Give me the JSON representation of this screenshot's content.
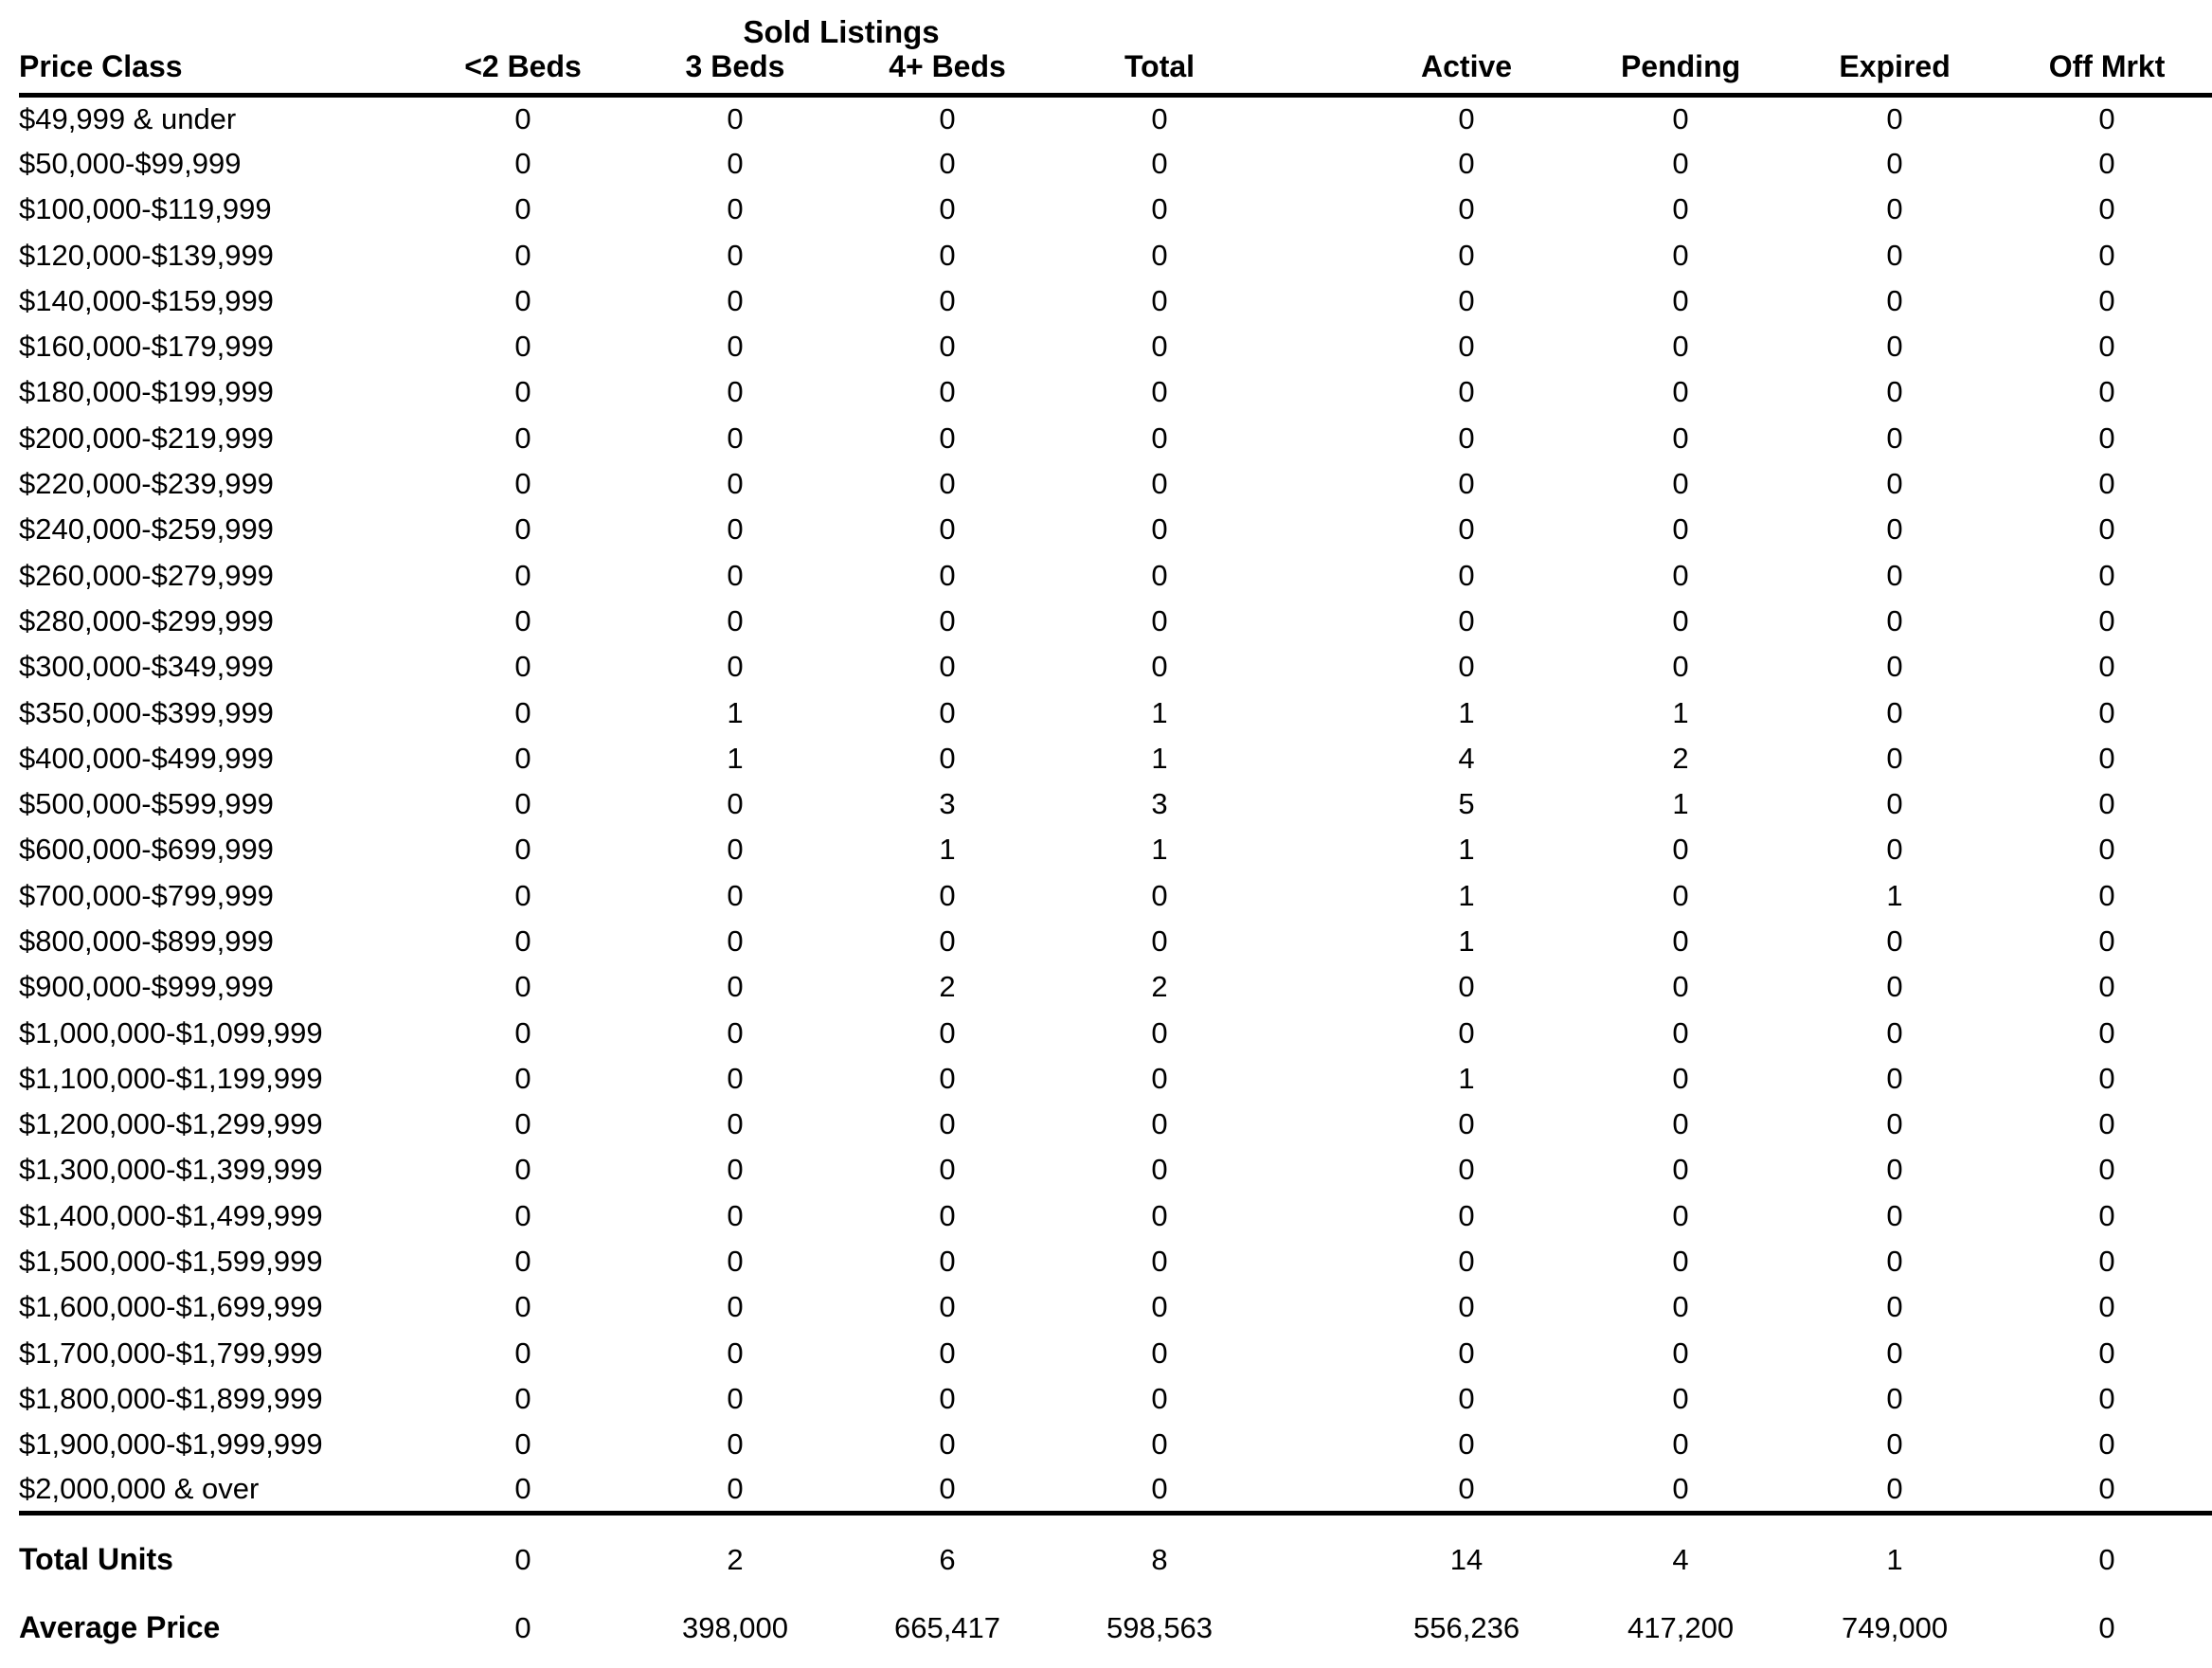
{
  "title": "Sold Listings",
  "colors": {
    "text": "#000000",
    "background": "#ffffff",
    "rule": "#000000"
  },
  "chart_data": {
    "type": "table",
    "title": "Sold Listings",
    "title_spans_columns": [
      "<2 Beds",
      "3 Beds",
      "4+ Beds",
      "Total"
    ],
    "columns": [
      "Price Class",
      "<2 Beds",
      "3 Beds",
      "4+ Beds",
      "Total",
      "Active",
      "Pending",
      "Expired",
      "Off Mrkt"
    ],
    "rows": [
      {
        "price_class": "$49,999 & under",
        "values": [
          "0",
          "0",
          "0",
          "0",
          "0",
          "0",
          "0",
          "0"
        ]
      },
      {
        "price_class": "$50,000-$99,999",
        "values": [
          "0",
          "0",
          "0",
          "0",
          "0",
          "0",
          "0",
          "0"
        ]
      },
      {
        "price_class": "$100,000-$119,999",
        "values": [
          "0",
          "0",
          "0",
          "0",
          "0",
          "0",
          "0",
          "0"
        ]
      },
      {
        "price_class": "$120,000-$139,999",
        "values": [
          "0",
          "0",
          "0",
          "0",
          "0",
          "0",
          "0",
          "0"
        ]
      },
      {
        "price_class": "$140,000-$159,999",
        "values": [
          "0",
          "0",
          "0",
          "0",
          "0",
          "0",
          "0",
          "0"
        ]
      },
      {
        "price_class": "$160,000-$179,999",
        "values": [
          "0",
          "0",
          "0",
          "0",
          "0",
          "0",
          "0",
          "0"
        ]
      },
      {
        "price_class": "$180,000-$199,999",
        "values": [
          "0",
          "0",
          "0",
          "0",
          "0",
          "0",
          "0",
          "0"
        ]
      },
      {
        "price_class": "$200,000-$219,999",
        "values": [
          "0",
          "0",
          "0",
          "0",
          "0",
          "0",
          "0",
          "0"
        ]
      },
      {
        "price_class": "$220,000-$239,999",
        "values": [
          "0",
          "0",
          "0",
          "0",
          "0",
          "0",
          "0",
          "0"
        ]
      },
      {
        "price_class": "$240,000-$259,999",
        "values": [
          "0",
          "0",
          "0",
          "0",
          "0",
          "0",
          "0",
          "0"
        ]
      },
      {
        "price_class": "$260,000-$279,999",
        "values": [
          "0",
          "0",
          "0",
          "0",
          "0",
          "0",
          "0",
          "0"
        ]
      },
      {
        "price_class": "$280,000-$299,999",
        "values": [
          "0",
          "0",
          "0",
          "0",
          "0",
          "0",
          "0",
          "0"
        ]
      },
      {
        "price_class": "$300,000-$349,999",
        "values": [
          "0",
          "0",
          "0",
          "0",
          "0",
          "0",
          "0",
          "0"
        ]
      },
      {
        "price_class": "$350,000-$399,999",
        "values": [
          "0",
          "1",
          "0",
          "1",
          "1",
          "1",
          "0",
          "0"
        ]
      },
      {
        "price_class": "$400,000-$499,999",
        "values": [
          "0",
          "1",
          "0",
          "1",
          "4",
          "2",
          "0",
          "0"
        ]
      },
      {
        "price_class": "$500,000-$599,999",
        "values": [
          "0",
          "0",
          "3",
          "3",
          "5",
          "1",
          "0",
          "0"
        ]
      },
      {
        "price_class": "$600,000-$699,999",
        "values": [
          "0",
          "0",
          "1",
          "1",
          "1",
          "0",
          "0",
          "0"
        ]
      },
      {
        "price_class": "$700,000-$799,999",
        "values": [
          "0",
          "0",
          "0",
          "0",
          "1",
          "0",
          "1",
          "0"
        ]
      },
      {
        "price_class": "$800,000-$899,999",
        "values": [
          "0",
          "0",
          "0",
          "0",
          "1",
          "0",
          "0",
          "0"
        ]
      },
      {
        "price_class": "$900,000-$999,999",
        "values": [
          "0",
          "0",
          "2",
          "2",
          "0",
          "0",
          "0",
          "0"
        ]
      },
      {
        "price_class": "$1,000,000-$1,099,999",
        "values": [
          "0",
          "0",
          "0",
          "0",
          "0",
          "0",
          "0",
          "0"
        ]
      },
      {
        "price_class": "$1,100,000-$1,199,999",
        "values": [
          "0",
          "0",
          "0",
          "0",
          "1",
          "0",
          "0",
          "0"
        ]
      },
      {
        "price_class": "$1,200,000-$1,299,999",
        "values": [
          "0",
          "0",
          "0",
          "0",
          "0",
          "0",
          "0",
          "0"
        ]
      },
      {
        "price_class": "$1,300,000-$1,399,999",
        "values": [
          "0",
          "0",
          "0",
          "0",
          "0",
          "0",
          "0",
          "0"
        ]
      },
      {
        "price_class": "$1,400,000-$1,499,999",
        "values": [
          "0",
          "0",
          "0",
          "0",
          "0",
          "0",
          "0",
          "0"
        ]
      },
      {
        "price_class": "$1,500,000-$1,599,999",
        "values": [
          "0",
          "0",
          "0",
          "0",
          "0",
          "0",
          "0",
          "0"
        ]
      },
      {
        "price_class": "$1,600,000-$1,699,999",
        "values": [
          "0",
          "0",
          "0",
          "0",
          "0",
          "0",
          "0",
          "0"
        ]
      },
      {
        "price_class": "$1,700,000-$1,799,999",
        "values": [
          "0",
          "0",
          "0",
          "0",
          "0",
          "0",
          "0",
          "0"
        ]
      },
      {
        "price_class": "$1,800,000-$1,899,999",
        "values": [
          "0",
          "0",
          "0",
          "0",
          "0",
          "0",
          "0",
          "0"
        ]
      },
      {
        "price_class": "$1,900,000-$1,999,999",
        "values": [
          "0",
          "0",
          "0",
          "0",
          "0",
          "0",
          "0",
          "0"
        ]
      },
      {
        "price_class": "$2,000,000 & over",
        "values": [
          "0",
          "0",
          "0",
          "0",
          "0",
          "0",
          "0",
          "0"
        ]
      }
    ],
    "summary": [
      {
        "label": "Total Units",
        "values": [
          "0",
          "2",
          "6",
          "8",
          "14",
          "4",
          "1",
          "0"
        ]
      },
      {
        "label": "Average Price",
        "values": [
          "0",
          "398,000",
          "665,417",
          "598,563",
          "556,236",
          "417,200",
          "749,000",
          "0"
        ]
      }
    ]
  }
}
